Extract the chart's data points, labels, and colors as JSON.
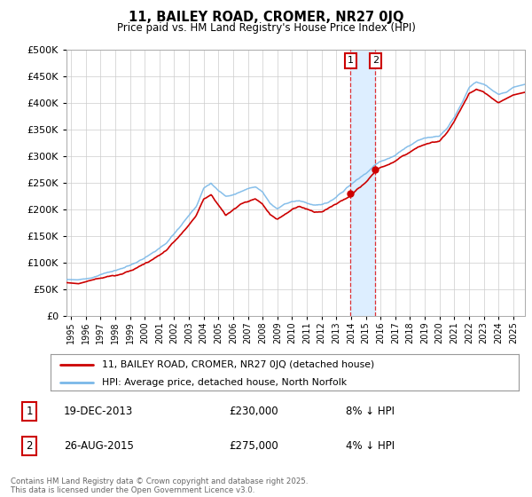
{
  "title": "11, BAILEY ROAD, CROMER, NR27 0JQ",
  "subtitle": "Price paid vs. HM Land Registry's House Price Index (HPI)",
  "legend_line1": "11, BAILEY ROAD, CROMER, NR27 0JQ (detached house)",
  "legend_line2": "HPI: Average price, detached house, North Norfolk",
  "sale1_date": "19-DEC-2013",
  "sale1_price": 230000,
  "sale1_pct": "8% ↓ HPI",
  "sale1_label": "1",
  "sale1_t": 2013.97,
  "sale2_date": "26-AUG-2015",
  "sale2_price": 275000,
  "sale2_pct": "4% ↓ HPI",
  "sale2_label": "2",
  "sale2_t": 2015.65,
  "footnote": "Contains HM Land Registry data © Crown copyright and database right 2025.\nThis data is licensed under the Open Government Licence v3.0.",
  "hpi_color": "#7ab8e8",
  "price_color": "#cc0000",
  "marker_box_color": "#cc0000",
  "shade_color": "#ddeeff",
  "background_color": "#ffffff",
  "plot_bg_color": "#ffffff",
  "grid_color": "#cccccc",
  "ylim": [
    0,
    500000
  ],
  "xlim_start": 1994.7,
  "xlim_end": 2025.8,
  "hpi_anchors": [
    [
      1994.7,
      68000
    ],
    [
      1995.5,
      67000
    ],
    [
      1996.5,
      72000
    ],
    [
      1997.5,
      80000
    ],
    [
      1998.5,
      88000
    ],
    [
      1999.5,
      100000
    ],
    [
      2000.5,
      115000
    ],
    [
      2001.5,
      135000
    ],
    [
      2002.5,
      170000
    ],
    [
      2003.5,
      205000
    ],
    [
      2004.0,
      240000
    ],
    [
      2004.5,
      250000
    ],
    [
      2005.0,
      235000
    ],
    [
      2005.5,
      225000
    ],
    [
      2006.0,
      230000
    ],
    [
      2006.5,
      235000
    ],
    [
      2007.0,
      240000
    ],
    [
      2007.5,
      245000
    ],
    [
      2008.0,
      235000
    ],
    [
      2008.5,
      215000
    ],
    [
      2009.0,
      205000
    ],
    [
      2009.5,
      215000
    ],
    [
      2010.0,
      220000
    ],
    [
      2010.5,
      222000
    ],
    [
      2011.0,
      218000
    ],
    [
      2011.5,
      215000
    ],
    [
      2012.0,
      215000
    ],
    [
      2012.5,
      220000
    ],
    [
      2013.0,
      228000
    ],
    [
      2013.5,
      240000
    ],
    [
      2014.0,
      252000
    ],
    [
      2014.5,
      262000
    ],
    [
      2015.0,
      272000
    ],
    [
      2015.5,
      285000
    ],
    [
      2016.0,
      295000
    ],
    [
      2016.5,
      300000
    ],
    [
      2017.0,
      305000
    ],
    [
      2017.5,
      315000
    ],
    [
      2018.0,
      322000
    ],
    [
      2018.5,
      330000
    ],
    [
      2019.0,
      335000
    ],
    [
      2019.5,
      338000
    ],
    [
      2020.0,
      340000
    ],
    [
      2020.5,
      355000
    ],
    [
      2021.0,
      375000
    ],
    [
      2021.5,
      400000
    ],
    [
      2022.0,
      430000
    ],
    [
      2022.5,
      440000
    ],
    [
      2023.0,
      435000
    ],
    [
      2023.5,
      425000
    ],
    [
      2024.0,
      415000
    ],
    [
      2024.5,
      420000
    ],
    [
      2025.0,
      430000
    ],
    [
      2025.8,
      435000
    ]
  ],
  "price_anchors": [
    [
      1994.7,
      62000
    ],
    [
      1995.5,
      60000
    ],
    [
      1996.5,
      68000
    ],
    [
      1997.5,
      75000
    ],
    [
      1998.5,
      80000
    ],
    [
      1999.5,
      92000
    ],
    [
      2000.5,
      108000
    ],
    [
      2001.5,
      128000
    ],
    [
      2002.5,
      160000
    ],
    [
      2003.5,
      195000
    ],
    [
      2004.0,
      225000
    ],
    [
      2004.5,
      235000
    ],
    [
      2005.0,
      215000
    ],
    [
      2005.5,
      195000
    ],
    [
      2006.0,
      205000
    ],
    [
      2006.5,
      215000
    ],
    [
      2007.0,
      220000
    ],
    [
      2007.5,
      225000
    ],
    [
      2008.0,
      215000
    ],
    [
      2008.5,
      195000
    ],
    [
      2009.0,
      185000
    ],
    [
      2009.5,
      195000
    ],
    [
      2010.0,
      205000
    ],
    [
      2010.5,
      210000
    ],
    [
      2011.0,
      205000
    ],
    [
      2011.5,
      200000
    ],
    [
      2012.0,
      200000
    ],
    [
      2012.5,
      208000
    ],
    [
      2013.0,
      215000
    ],
    [
      2013.97,
      230000
    ],
    [
      2014.5,
      245000
    ],
    [
      2015.0,
      255000
    ],
    [
      2015.65,
      275000
    ],
    [
      2016.0,
      282000
    ],
    [
      2016.5,
      288000
    ],
    [
      2017.0,
      295000
    ],
    [
      2017.5,
      305000
    ],
    [
      2018.0,
      312000
    ],
    [
      2018.5,
      320000
    ],
    [
      2019.0,
      325000
    ],
    [
      2019.5,
      328000
    ],
    [
      2020.0,
      330000
    ],
    [
      2020.5,
      345000
    ],
    [
      2021.0,
      365000
    ],
    [
      2021.5,
      390000
    ],
    [
      2022.0,
      415000
    ],
    [
      2022.5,
      425000
    ],
    [
      2023.0,
      420000
    ],
    [
      2023.5,
      410000
    ],
    [
      2024.0,
      400000
    ],
    [
      2024.5,
      408000
    ],
    [
      2025.0,
      415000
    ],
    [
      2025.8,
      420000
    ]
  ]
}
